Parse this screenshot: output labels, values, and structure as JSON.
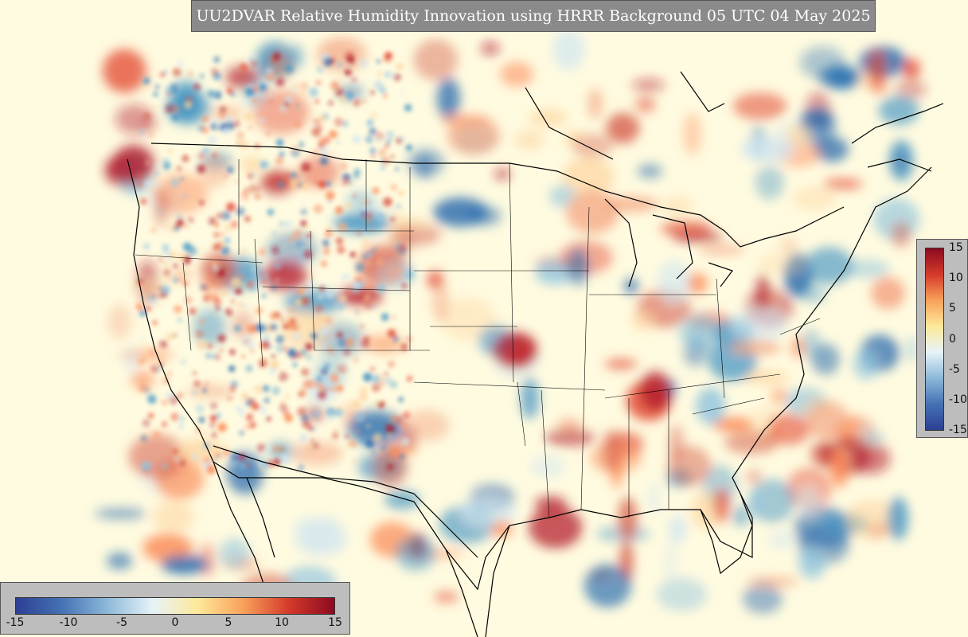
{
  "title": "UU2DVAR Relative Humidity Innovation using HRRR Background 05 UTC 04 May 2025",
  "colorbar": {
    "ticks_horizontal": [
      "-15",
      "-10",
      "-5",
      "0",
      "5",
      "10",
      "15"
    ],
    "ticks_vertical": [
      "15",
      "10",
      "5",
      "0",
      "-5",
      "-10",
      "-15"
    ],
    "range": [
      -15,
      15
    ],
    "colors": [
      "#2d3f94",
      "#4472b4",
      "#8cb8d9",
      "#e6f3f8",
      "#fee99a",
      "#f8a15a",
      "#d43a2a",
      "#8c0a20"
    ]
  },
  "map": {
    "background_color": "#fffdf0",
    "coastline_color": "#000000",
    "projection": "Lambert Conformal — Continental United States"
  }
}
